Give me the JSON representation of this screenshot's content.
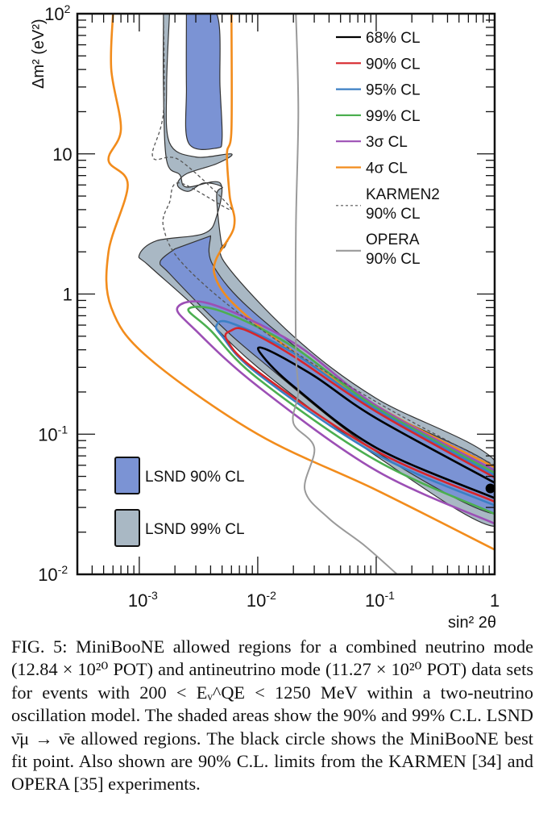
{
  "chart_data": {
    "type": "line",
    "title": "",
    "xlabel": "sin² 2θ",
    "ylabel": "Δm² (eV²)",
    "xscale": "log",
    "yscale": "log",
    "xlim": [
      0.0003,
      1
    ],
    "ylim": [
      0.01,
      100
    ],
    "grid": false,
    "x_ticks": [
      {
        "value": 0.001,
        "base": "10",
        "exp": "-3"
      },
      {
        "value": 0.01,
        "base": "10",
        "exp": "-2"
      },
      {
        "value": 0.1,
        "base": "10",
        "exp": "-1"
      },
      {
        "value": 1,
        "base": "1",
        "exp": ""
      }
    ],
    "y_ticks": [
      {
        "value": 0.01,
        "base": "10",
        "exp": "-2"
      },
      {
        "value": 0.1,
        "base": "10",
        "exp": "-1"
      },
      {
        "value": 1,
        "base": "1",
        "exp": ""
      },
      {
        "value": 10,
        "base": "10",
        "exp": ""
      },
      {
        "value": 100,
        "base": "10",
        "exp": "2"
      }
    ],
    "legend_position": "top-right",
    "legend": [
      {
        "label": "68% CL",
        "color": "#000000",
        "style": "solid"
      },
      {
        "label": "90% CL",
        "color": "#d7262b",
        "style": "solid"
      },
      {
        "label": "95% CL",
        "color": "#3b7fc4",
        "style": "solid"
      },
      {
        "label": "99% CL",
        "color": "#4caf50",
        "style": "solid"
      },
      {
        "label": "3σ CL",
        "color": "#9c4fb5",
        "style": "solid"
      },
      {
        "label": "4σ CL",
        "color": "#f28c1c",
        "style": "solid"
      },
      {
        "label": "KARMEN2",
        "label2": "90% CL",
        "color": "#555555",
        "style": "dashed"
      },
      {
        "label": "OPERA",
        "label2": "90% CL",
        "color": "#9a9a9a",
        "style": "solid"
      }
    ],
    "fill_legend_position": "bottom-left",
    "fill_legend": [
      {
        "label": "LSND 90% CL",
        "color": "#7b93d4"
      },
      {
        "label": "LSND 99% CL",
        "color": "#a9b8c4"
      }
    ],
    "best_fit": {
      "x": 0.92,
      "y": 0.041,
      "label": "MiniBooNE best fit"
    },
    "series": [
      {
        "name": "LSND 99% CL",
        "kind": "fill",
        "color": "#a9b8c4",
        "points": [
          [
            0.0018,
            100
          ],
          [
            0.0017,
            30
          ],
          [
            0.0018,
            12
          ],
          [
            0.003,
            9.5
          ],
          [
            0.006,
            10
          ],
          [
            0.0045,
            8.5
          ],
          [
            0.0025,
            7.2
          ],
          [
            0.0021,
            6.0
          ],
          [
            0.0026,
            5.4
          ],
          [
            0.0035,
            6.2
          ],
          [
            0.005,
            5.8
          ],
          [
            0.0045,
            5.0
          ],
          [
            0.005,
            2.2
          ],
          [
            0.0056,
            2.4
          ],
          [
            0.0052,
            1.7
          ],
          [
            0.02,
            0.5
          ],
          [
            0.1,
            0.18
          ],
          [
            1,
            0.065
          ],
          [
            1,
            0.022
          ],
          [
            0.1,
            0.07
          ],
          [
            0.01,
            0.3
          ],
          [
            0.003,
            0.8
          ],
          [
            0.0012,
            1.6
          ],
          [
            0.001,
            1.9
          ],
          [
            0.0014,
            2.4
          ],
          [
            0.0035,
            2.7
          ],
          [
            0.0045,
            3.6
          ],
          [
            0.0048,
            6.2
          ],
          [
            0.0025,
            5.8
          ],
          [
            0.0022,
            7.1
          ],
          [
            0.0017,
            9
          ],
          [
            0.0016,
            30
          ],
          [
            0.0016,
            100
          ]
        ]
      },
      {
        "name": "LSND 90% CL",
        "kind": "fill",
        "color": "#7b93d4",
        "points": [
          [
            0.0025,
            100
          ],
          [
            0.0025,
            30
          ],
          [
            0.0026,
            12
          ],
          [
            0.0045,
            11
          ],
          [
            0.005,
            13
          ],
          [
            0.0048,
            30
          ],
          [
            0.0045,
            100
          ],
          [
            0.0025,
            100
          ]
        ]
      },
      {
        "name": "LSND 90% CL band",
        "kind": "fill",
        "color": "#7b93d4",
        "points": [
          [
            0.004,
            2.6
          ],
          [
            0.0042,
            1.6
          ],
          [
            0.01,
            0.7
          ],
          [
            0.1,
            0.16
          ],
          [
            1,
            0.058
          ],
          [
            1,
            0.027
          ],
          [
            0.1,
            0.075
          ],
          [
            0.01,
            0.35
          ],
          [
            0.004,
            0.7
          ],
          [
            0.0018,
            1.4
          ],
          [
            0.0015,
            1.7
          ],
          [
            0.002,
            2.1
          ]
        ]
      },
      {
        "name": "4σ CL",
        "kind": "line",
        "color": "#f28c1c",
        "points": [
          [
            0.0006,
            100
          ],
          [
            0.00058,
            40
          ],
          [
            0.0007,
            15
          ],
          [
            0.00055,
            9
          ],
          [
            0.0008,
            6
          ],
          [
            0.00055,
            2
          ],
          [
            0.00058,
            0.8
          ],
          [
            0.0012,
            0.35
          ],
          [
            0.01,
            0.1
          ],
          [
            0.1,
            0.04
          ],
          [
            1,
            0.015
          ]
        ]
      },
      {
        "name": "4σ CL right",
        "kind": "line",
        "color": "#f28c1c",
        "points": [
          [
            0.006,
            100
          ],
          [
            0.006,
            15
          ],
          [
            0.0055,
            10
          ],
          [
            0.0058,
            5
          ],
          [
            0.0063,
            3
          ],
          [
            0.0043,
            1.4
          ],
          [
            0.01,
            0.6
          ],
          [
            0.1,
            0.16
          ],
          [
            1,
            0.058
          ]
        ]
      },
      {
        "name": "3σ CL",
        "kind": "line",
        "color": "#9c4fb5",
        "points": [
          [
            1,
            0.023
          ],
          [
            0.1,
            0.055
          ],
          [
            0.01,
            0.22
          ],
          [
            0.003,
            0.55
          ],
          [
            0.0021,
            0.8
          ],
          [
            0.004,
            0.85
          ],
          [
            0.02,
            0.45
          ],
          [
            0.1,
            0.16
          ],
          [
            1,
            0.055
          ]
        ]
      },
      {
        "name": "99% CL",
        "kind": "line",
        "color": "#4caf50",
        "points": [
          [
            1,
            0.027
          ],
          [
            0.1,
            0.065
          ],
          [
            0.01,
            0.25
          ],
          [
            0.004,
            0.55
          ],
          [
            0.0026,
            0.78
          ],
          [
            0.005,
            0.75
          ],
          [
            0.02,
            0.42
          ],
          [
            0.1,
            0.155
          ],
          [
            1,
            0.053
          ]
        ]
      },
      {
        "name": "95% CL",
        "kind": "line",
        "color": "#3b7fc4",
        "points": [
          [
            1,
            0.031
          ],
          [
            0.1,
            0.072
          ],
          [
            0.01,
            0.27
          ],
          [
            0.005,
            0.5
          ],
          [
            0.0045,
            0.6
          ],
          [
            0.006,
            0.62
          ],
          [
            0.02,
            0.38
          ],
          [
            0.1,
            0.15
          ],
          [
            1,
            0.051
          ]
        ]
      },
      {
        "name": "90% CL",
        "kind": "line",
        "color": "#d7262b",
        "points": [
          [
            1,
            0.033
          ],
          [
            0.1,
            0.076
          ],
          [
            0.01,
            0.28
          ],
          [
            0.0055,
            0.47
          ],
          [
            0.006,
            0.55
          ],
          [
            0.008,
            0.55
          ],
          [
            0.02,
            0.36
          ],
          [
            0.1,
            0.145
          ],
          [
            1,
            0.049
          ]
        ]
      },
      {
        "name": "68% CL",
        "kind": "line",
        "color": "#000000",
        "points": [
          [
            1,
            0.035
          ],
          [
            0.1,
            0.08
          ],
          [
            0.02,
            0.22
          ],
          [
            0.0105,
            0.38
          ],
          [
            0.012,
            0.4
          ],
          [
            0.03,
            0.26
          ],
          [
            0.1,
            0.13
          ],
          [
            1,
            0.045
          ]
        ]
      },
      {
        "name": "KARMEN2 90% CL",
        "kind": "dashed",
        "color": "#555555",
        "points": [
          [
            0.0016,
            100
          ],
          [
            0.0016,
            20
          ],
          [
            0.0013,
            9.5
          ],
          [
            0.0022,
            9
          ],
          [
            0.006,
            4
          ],
          [
            0.0022,
            6.2
          ],
          [
            0.0018,
            4.5
          ],
          [
            0.0016,
            3
          ],
          [
            0.0024,
            1.6
          ],
          [
            0.01,
            0.58
          ],
          [
            0.1,
            0.17
          ],
          [
            1,
            0.06
          ]
        ]
      },
      {
        "name": "OPERA 90% CL",
        "kind": "line",
        "color": "#9a9a9a",
        "points": [
          [
            0.021,
            100
          ],
          [
            0.022,
            20
          ],
          [
            0.021,
            3
          ],
          [
            0.021,
            0.4
          ],
          [
            0.022,
            0.2
          ],
          [
            0.02,
            0.12
          ],
          [
            0.03,
            0.08
          ],
          [
            0.025,
            0.04
          ],
          [
            0.04,
            0.025
          ],
          [
            0.08,
            0.016
          ],
          [
            0.15,
            0.01
          ]
        ]
      }
    ]
  },
  "caption": "FIG. 5: MiniBooNE allowed regions for a combined neutrino mode (12.84 × 10²⁰ POT) and antineutrino mode (11.27 × 10²⁰ POT) data sets for events with 200 < Eᵥ^QE < 1250 MeV within a two-neutrino oscillation model. The shaded areas show the 90% and 99% C.L. LSND ν̄μ → ν̄e allowed regions. The black circle shows the MiniBooNE best fit point. Also shown are 90% C.L. limits from the KARMEN [34] and OPERA [35] experiments."
}
